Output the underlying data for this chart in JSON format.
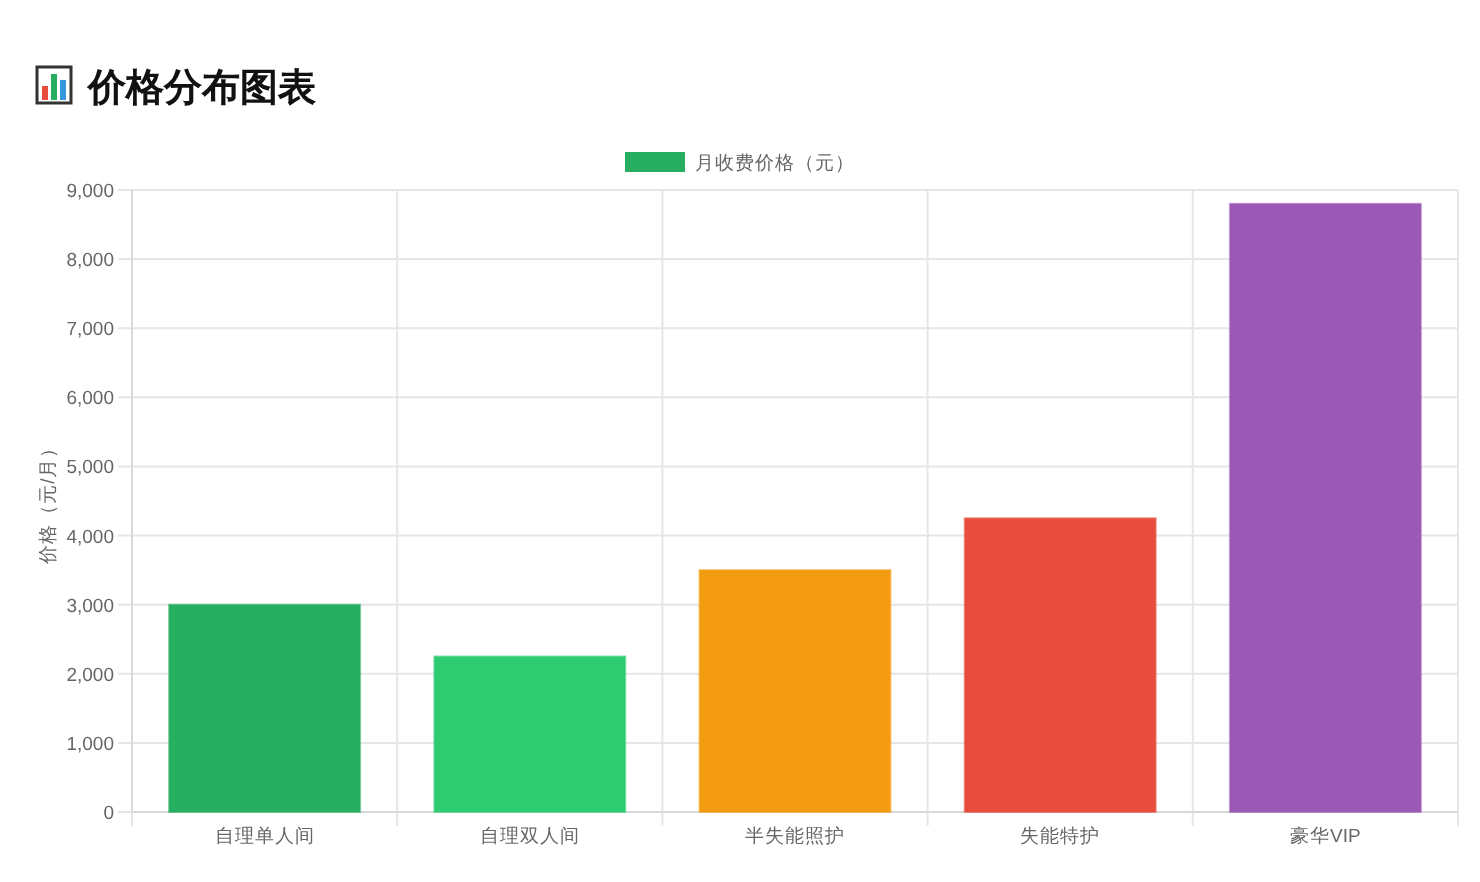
{
  "chart_data": {
    "type": "bar",
    "title": "价格分布图表",
    "ylabel": "价格（元/月）",
    "categories": [
      "自理单人间",
      "自理双人间",
      "半失能照护",
      "失能特护",
      "豪华VIP"
    ],
    "series": [
      {
        "name": "月收费价格（元）",
        "color": "#27ae60",
        "colors": [
          "#27ae60",
          "#2ecc71",
          "#f39c12",
          "#e74c3c",
          "#9b59b6"
        ],
        "values": [
          3000,
          2250,
          3500,
          4250,
          8800
        ]
      }
    ],
    "ylim": [
      0,
      9000
    ],
    "yticks": [
      0,
      {
        "value": 1000,
        "label": "1,000"
      },
      {
        "value": 2000,
        "label": "2,000"
      },
      {
        "value": 3000,
        "label": "3,000"
      },
      {
        "value": 4000,
        "label": "4,000"
      },
      {
        "value": 5000,
        "label": "5,000"
      },
      {
        "value": 6000,
        "label": "6,000"
      },
      {
        "value": 7000,
        "label": "7,000"
      },
      {
        "value": 8000,
        "label": "8,000"
      },
      {
        "value": 9000,
        "label": "9,000"
      }
    ],
    "grid": true,
    "legend": "top"
  }
}
